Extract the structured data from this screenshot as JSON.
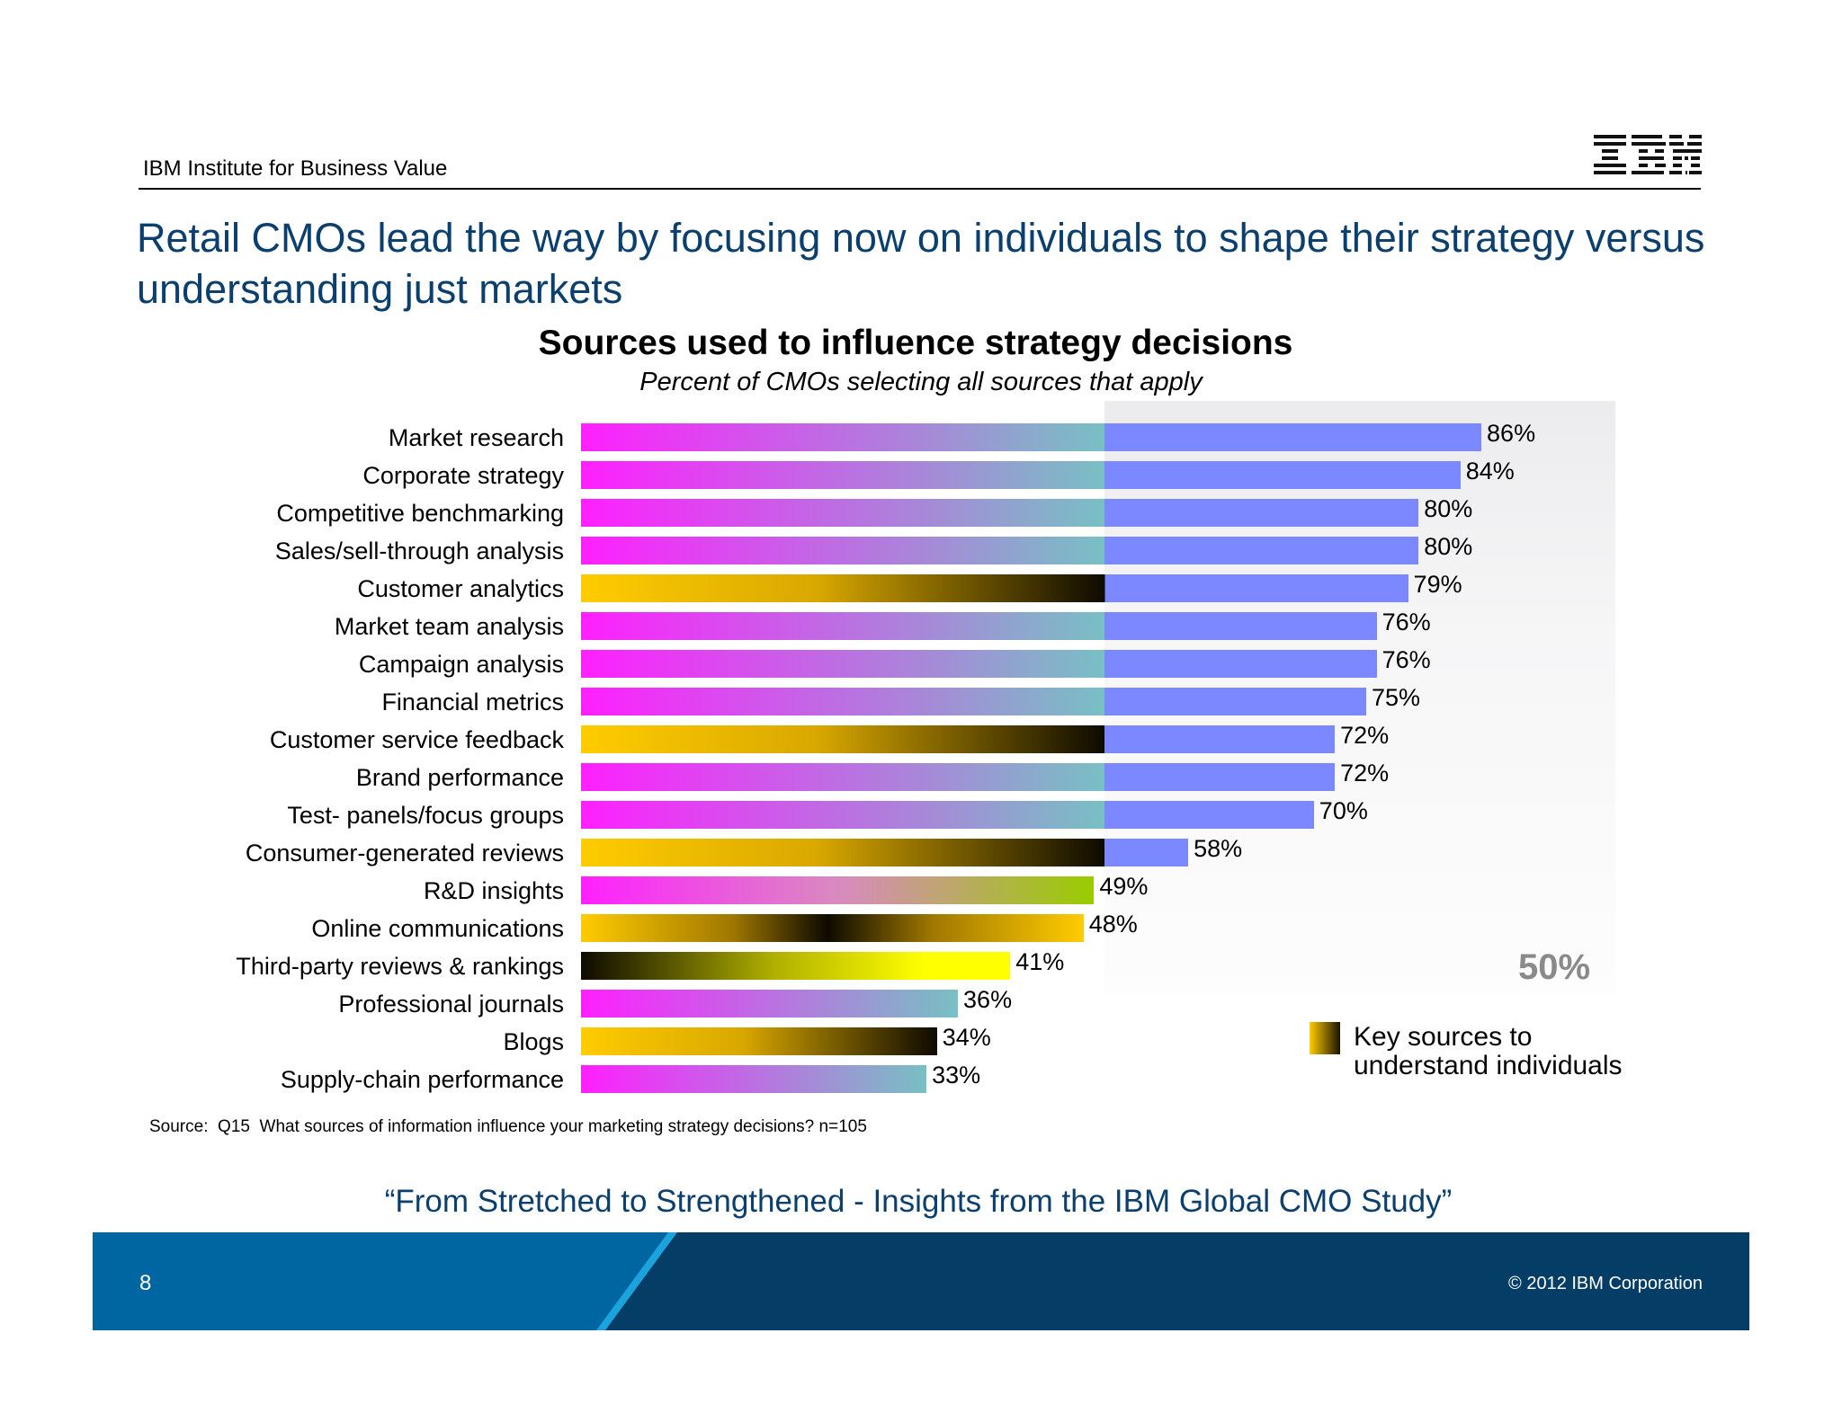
{
  "header": {
    "org": "IBM Institute for Business Value",
    "logo_text": "IBM"
  },
  "title": "Retail CMOs lead the way by focusing now on individuals to shape their strategy versus understanding just markets",
  "chart_data": {
    "type": "bar",
    "orientation": "horizontal",
    "title": "Sources used to influence strategy decisions",
    "subtitle": "Percent of CMOs selecting all sources that apply",
    "categories": [
      "Market research",
      "Corporate strategy",
      "Competitive benchmarking",
      "Sales/sell-through analysis",
      "Customer analytics",
      "Market team analysis",
      "Campaign analysis",
      "Financial metrics",
      "Customer service feedback",
      "Brand performance",
      "Test- panels/focus groups",
      "Consumer-generated reviews",
      "R&D insights",
      "Online communications",
      "Third-party reviews & rankings",
      "Professional journals",
      "Blogs",
      "Supply-chain performance"
    ],
    "values": [
      86,
      84,
      80,
      80,
      79,
      76,
      76,
      75,
      72,
      72,
      70,
      58,
      49,
      48,
      41,
      36,
      34,
      33
    ],
    "value_labels": [
      "86%",
      "84%",
      "80%",
      "80%",
      "79%",
      "76%",
      "76%",
      "75%",
      "72%",
      "72%",
      "70%",
      "58%",
      "49%",
      "48%",
      "41%",
      "36%",
      "34%",
      "33%"
    ],
    "key_source_individuals": [
      false,
      false,
      false,
      false,
      true,
      false,
      false,
      false,
      true,
      false,
      false,
      true,
      false,
      true,
      true,
      false,
      true,
      false
    ],
    "fill_styles": [
      "market",
      "market",
      "market",
      "market",
      "individual",
      "market",
      "market",
      "market",
      "individual",
      "market",
      "market",
      "individual",
      "rnd",
      "online",
      "thirdparty",
      "market",
      "individual",
      "market"
    ],
    "xlim": [
      0,
      100
    ],
    "threshold": {
      "value": 50,
      "label": "50%"
    },
    "legend": {
      "label": "Key sources to understand individuals",
      "position": "bottom-right"
    },
    "colors": {
      "magenta": "#ff1fff",
      "teal": "#78c0c4",
      "blue": "#7b88ff",
      "gold": "#ffcc00",
      "black": "#0d0a00",
      "green": "#99cc00",
      "yellow": "#ffff00",
      "label_50": "#8a8a8a"
    }
  },
  "source": "Source:  Q15  What sources of information influence your marketing strategy decisions? n=105",
  "quote": "“From Stretched to Strengthened - Insights from the IBM Global CMO Study”",
  "footer": {
    "page": "8",
    "copyright": "© 2012 IBM Corporation",
    "colors": {
      "dark": "#043d66",
      "light": "#0066a1"
    }
  }
}
